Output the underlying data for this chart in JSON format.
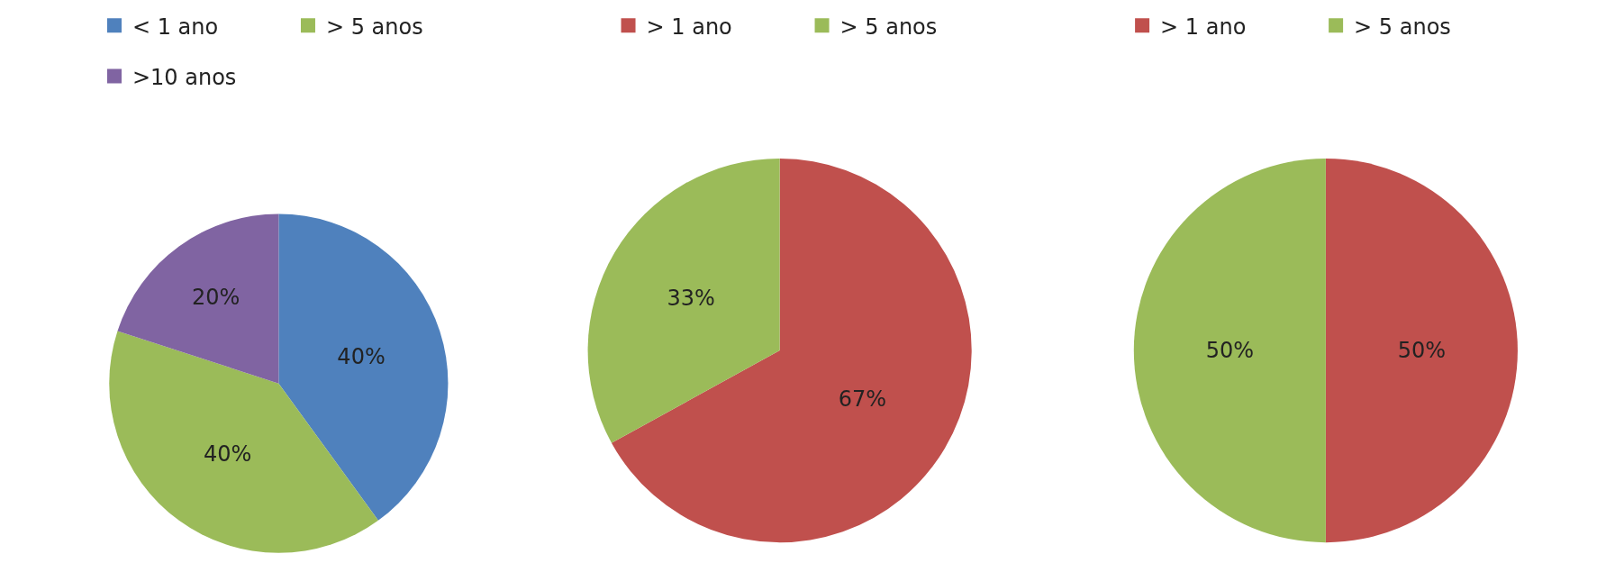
{
  "chart_data": [
    {
      "type": "pie",
      "categories": [
        "< 1 ano",
        "> 5 anos",
        ">10 anos"
      ],
      "values": [
        40,
        40,
        20
      ],
      "colors": [
        "#4f81bd",
        "#9bbb59",
        "#8064a2"
      ],
      "value_labels": [
        "40%",
        "40%",
        "20%"
      ],
      "legend": "top"
    },
    {
      "type": "pie",
      "categories": [
        "> 1 ano",
        "> 5 anos"
      ],
      "values": [
        67,
        33
      ],
      "colors": [
        "#c0504d",
        "#9bbb59"
      ],
      "value_labels": [
        "67%",
        "33%"
      ],
      "legend": "top"
    },
    {
      "type": "pie",
      "categories": [
        "> 1 ano",
        "> 5 anos"
      ],
      "values": [
        50,
        50
      ],
      "colors": [
        "#c0504d",
        "#9bbb59"
      ],
      "value_labels": [
        "50%",
        "50%"
      ],
      "legend": "top"
    }
  ]
}
